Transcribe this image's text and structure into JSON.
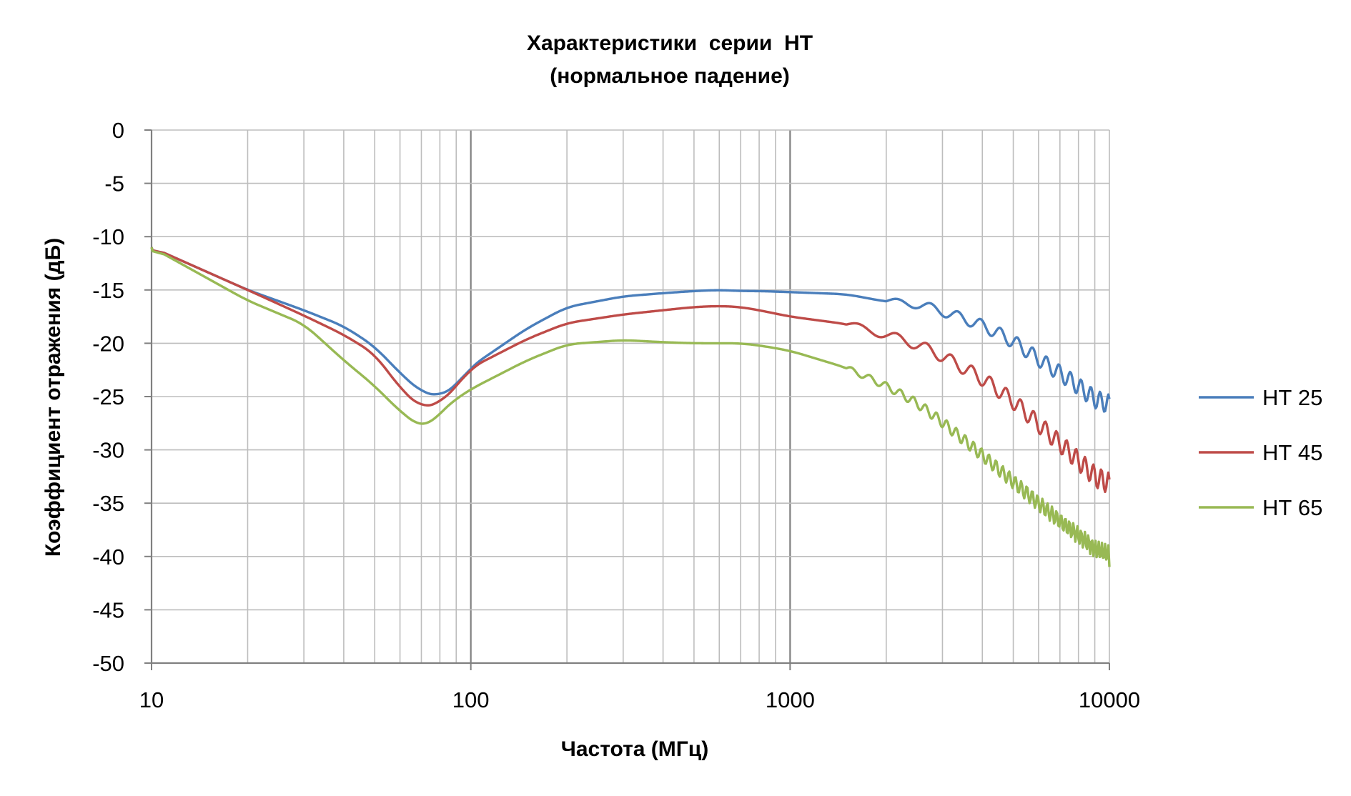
{
  "chart_data": {
    "type": "line",
    "title_line1": "Характеристики  серии  НТ",
    "title_line2": "(нормальное падение)",
    "xlabel": "Частота (МГц)",
    "ylabel": "Коэффициент отражения (дБ)",
    "x_scale": "log",
    "xlim": [
      10,
      10000
    ],
    "ylim": [
      -50,
      0
    ],
    "x_ticks": [
      "10",
      "100",
      "1000",
      "10000"
    ],
    "y_ticks": [
      "0",
      "-5",
      "-10",
      "-15",
      "-20",
      "-25",
      "-30",
      "-35",
      "-40",
      "-45",
      "-50"
    ],
    "grid": true,
    "legend_position": "right",
    "series": [
      {
        "name": "НТ 25",
        "color": "#4a7ebb",
        "points": [
          [
            10,
            -11
          ],
          [
            20,
            -15
          ],
          [
            30,
            -16.9
          ],
          [
            40,
            -18.4
          ],
          [
            50,
            -20.3
          ],
          [
            60,
            -22.8
          ],
          [
            70,
            -24.6
          ],
          [
            80,
            -25
          ],
          [
            90,
            -24
          ],
          [
            100,
            -22.2
          ],
          [
            150,
            -18.6
          ],
          [
            200,
            -16.6
          ],
          [
            300,
            -15.6
          ],
          [
            400,
            -15.3
          ],
          [
            500,
            -15.1
          ],
          [
            600,
            -15
          ],
          [
            700,
            -15.1
          ],
          [
            800,
            -15.1
          ],
          [
            1000,
            -15.2
          ],
          [
            1500,
            -15.4
          ],
          [
            2000,
            -16.1
          ],
          [
            2500,
            -16.3
          ],
          [
            3000,
            -17
          ],
          [
            4000,
            -18.3
          ],
          [
            5000,
            -19.8
          ],
          [
            6000,
            -21.5
          ],
          [
            7000,
            -22.8
          ],
          [
            8000,
            -24
          ],
          [
            9000,
            -25.3
          ],
          [
            10000,
            -26
          ]
        ],
        "ripple": {
          "start": 2000,
          "start_amp": 0.3,
          "end_amp": 0.9,
          "period_mhz": 600
        }
      },
      {
        "name": "НТ 45",
        "color": "#be4b48",
        "points": [
          [
            10,
            -11
          ],
          [
            20,
            -15
          ],
          [
            30,
            -17.4
          ],
          [
            40,
            -19.2
          ],
          [
            50,
            -21
          ],
          [
            60,
            -24.2
          ],
          [
            70,
            -26.1
          ],
          [
            80,
            -25.6
          ],
          [
            90,
            -24.1
          ],
          [
            100,
            -22.3
          ],
          [
            150,
            -19.6
          ],
          [
            200,
            -18.1
          ],
          [
            300,
            -17.3
          ],
          [
            400,
            -16.9
          ],
          [
            500,
            -16.6
          ],
          [
            600,
            -16.5
          ],
          [
            700,
            -16.6
          ],
          [
            800,
            -16.9
          ],
          [
            1000,
            -17.5
          ],
          [
            1500,
            -18.2
          ],
          [
            2000,
            -19.2
          ],
          [
            2500,
            -20.1
          ],
          [
            3000,
            -21.2
          ],
          [
            4000,
            -23.3
          ],
          [
            5000,
            -25.4
          ],
          [
            6000,
            -27.6
          ],
          [
            7000,
            -29.4
          ],
          [
            8000,
            -31
          ],
          [
            9000,
            -32.5
          ],
          [
            10000,
            -33.6
          ]
        ],
        "ripple": {
          "start": 1500,
          "start_amp": 0.3,
          "end_amp": 1.0,
          "period_mhz": 520
        }
      },
      {
        "name": "НТ 65",
        "color": "#98b954",
        "points": [
          [
            10,
            -11
          ],
          [
            20,
            -16
          ],
          [
            30,
            -18.2
          ],
          [
            40,
            -21.6
          ],
          [
            50,
            -24
          ],
          [
            60,
            -26.4
          ],
          [
            70,
            -27.9
          ],
          [
            75,
            -27.6
          ],
          [
            80,
            -26.5
          ],
          [
            90,
            -25.2
          ],
          [
            100,
            -24.3
          ],
          [
            150,
            -21.6
          ],
          [
            200,
            -20.1
          ],
          [
            300,
            -19.7
          ],
          [
            400,
            -19.9
          ],
          [
            500,
            -20
          ],
          [
            600,
            -20
          ],
          [
            700,
            -20
          ],
          [
            800,
            -20.2
          ],
          [
            1000,
            -20.7
          ],
          [
            1500,
            -22.3
          ],
          [
            2000,
            -24
          ],
          [
            2500,
            -25.6
          ],
          [
            3000,
            -27.4
          ],
          [
            4000,
            -30.5
          ],
          [
            5000,
            -33
          ],
          [
            6000,
            -35
          ],
          [
            7000,
            -36.7
          ],
          [
            8000,
            -38
          ],
          [
            9000,
            -39.3
          ],
          [
            10000,
            -40.3
          ]
        ],
        "ripple": {
          "start": 1500,
          "start_amp": 0.25,
          "end_amp": 0.9,
          "period_mhz": 220
        }
      }
    ]
  }
}
